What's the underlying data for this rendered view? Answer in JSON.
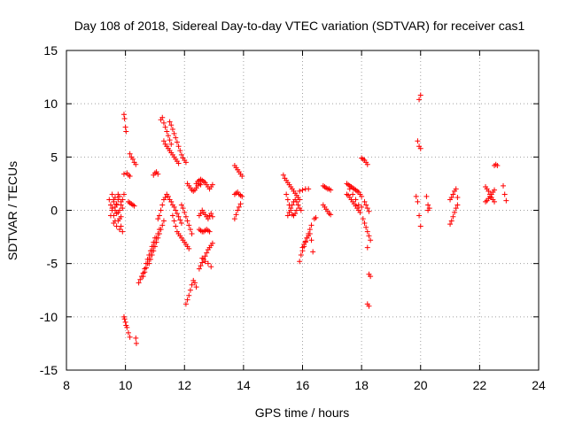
{
  "chart_data": {
    "type": "scatter",
    "title": "Day 108 of 2018, Sidereal Day-to-day VTEC variation (SDTVAR) for receiver cas1",
    "xlabel": "GPS time / hours",
    "ylabel": "SDTVAR / TECUs",
    "xlim": [
      8,
      24
    ],
    "ylim": [
      -15,
      15
    ],
    "xticks": [
      "8",
      "10",
      "12",
      "14",
      "16",
      "18",
      "20",
      "22",
      "24"
    ],
    "yticks": [
      "-15",
      "-10",
      "-5",
      "0",
      "5",
      "10",
      "15"
    ],
    "grid": true,
    "marker": "+",
    "marker_color": "#ff0000",
    "series": [
      {
        "name": "SDTVAR",
        "x": [
          9.45,
          9.5,
          9.55,
          9.6,
          9.65,
          9.7,
          9.75,
          9.8,
          9.85,
          9.9,
          9.95,
          9.5,
          9.55,
          9.6,
          9.65,
          9.7,
          9.75,
          9.8,
          9.85,
          9.9,
          9.55,
          9.6,
          9.65,
          9.7,
          9.75,
          9.8,
          9.85,
          9.6,
          9.7,
          9.8,
          9.9,
          9.65,
          9.75,
          9.85,
          9.95,
          9.95,
          9.97,
          10.0,
          10.02,
          10.05,
          10.1,
          10.15,
          9.95,
          9.97,
          10.0,
          10.02,
          10.05,
          10.1,
          10.15,
          10.15,
          10.2,
          10.25,
          10.3,
          10.35,
          10.1,
          10.15,
          10.2,
          10.25,
          10.3,
          10.35,
          10.37,
          10.45,
          10.5,
          10.55,
          10.6,
          10.65,
          10.7,
          10.75,
          10.8,
          10.85,
          10.9,
          10.95,
          11.0,
          10.6,
          10.65,
          10.7,
          10.75,
          10.8,
          10.85,
          10.9,
          10.95,
          11.0,
          11.05,
          11.1,
          11.15,
          10.8,
          10.85,
          10.9,
          10.95,
          11.0,
          11.05,
          11.1,
          11.15,
          11.2,
          11.25,
          11.3,
          10.95,
          11.0,
          11.05,
          11.1,
          11.1,
          11.15,
          11.2,
          11.25,
          11.3,
          11.35,
          11.4,
          11.45,
          11.5,
          11.55,
          11.6,
          11.65,
          11.7,
          11.75,
          11.8,
          11.85,
          11.9,
          11.2,
          11.25,
          11.3,
          11.35,
          11.4,
          11.45,
          11.5,
          11.55,
          11.5,
          11.55,
          11.6,
          11.65,
          11.7,
          11.75,
          11.8,
          11.85,
          11.9,
          11.95,
          12.0,
          12.05,
          11.3,
          11.35,
          11.4,
          11.45,
          11.5,
          11.55,
          11.6,
          11.65,
          11.7,
          11.75,
          11.8,
          11.6,
          11.65,
          11.7,
          11.75,
          11.8,
          11.85,
          11.9,
          11.95,
          12.0,
          12.05,
          12.1,
          12.15,
          11.9,
          11.95,
          12.0,
          12.05,
          12.1,
          12.15,
          12.2,
          12.25,
          12.05,
          12.1,
          12.15,
          12.2,
          12.25,
          12.3,
          12.35,
          12.4,
          12.1,
          12.15,
          12.2,
          12.25,
          12.3,
          12.35,
          12.4,
          12.45,
          12.5,
          12.55,
          12.4,
          12.45,
          12.5,
          12.55,
          12.6,
          12.65,
          12.7,
          12.75,
          12.8,
          12.85,
          12.9,
          12.95,
          12.5,
          12.55,
          12.6,
          12.65,
          12.7,
          12.75,
          12.8,
          12.85,
          12.9,
          12.95,
          12.5,
          12.55,
          12.6,
          12.65,
          12.7,
          12.75,
          12.8,
          12.85,
          12.9,
          12.95,
          12.5,
          12.55,
          12.6,
          12.65,
          12.7,
          12.75,
          12.8,
          12.85,
          12.6,
          12.7,
          12.8,
          12.9,
          13.7,
          13.75,
          13.8,
          13.85,
          13.9,
          13.95,
          13.7,
          13.75,
          13.8,
          13.85,
          13.9,
          13.95,
          13.7,
          13.75,
          13.8,
          13.85,
          13.9,
          15.35,
          15.4,
          15.45,
          15.5,
          15.55,
          15.6,
          15.65,
          15.7,
          15.75,
          15.8,
          15.85,
          15.9,
          15.45,
          15.5,
          15.55,
          15.6,
          15.65,
          15.7,
          15.75,
          15.8,
          15.5,
          15.55,
          15.6,
          15.65,
          15.7,
          15.75,
          15.8,
          15.85,
          15.9,
          15.95,
          15.9,
          15.95,
          16.0,
          16.05,
          16.1,
          16.15,
          16.2,
          16.25,
          16.3,
          16.0,
          16.05,
          16.1,
          16.15,
          16.2,
          16.25,
          16.3,
          16.35,
          15.9,
          16.0,
          16.1,
          16.2,
          16.4,
          16.45,
          16.7,
          16.75,
          16.8,
          16.85,
          16.9,
          16.95,
          16.7,
          16.75,
          16.8,
          16.85,
          16.9,
          16.95,
          17.5,
          17.55,
          17.6,
          17.65,
          17.7,
          17.75,
          17.8,
          17.85,
          17.9,
          17.95,
          18.0,
          17.5,
          17.55,
          17.6,
          17.65,
          17.7,
          17.75,
          17.8,
          17.85,
          17.9,
          17.95,
          17.6,
          17.7,
          17.8,
          17.9,
          18.0,
          18.0,
          18.05,
          18.1,
          18.15,
          18.2,
          18.05,
          18.1,
          18.15,
          18.2,
          18.25,
          18.3,
          18.1,
          18.15,
          18.2,
          18.25,
          18.2,
          18.25,
          18.3,
          18.2,
          18.25,
          19.85,
          19.9,
          19.95,
          20.0,
          20.0,
          19.95,
          19.9,
          19.95,
          20.0,
          20.2,
          20.25,
          20.3,
          20.25,
          21.0,
          21.05,
          21.1,
          21.15,
          21.2,
          21.25,
          21.0,
          21.05,
          21.1,
          21.15,
          21.2,
          21.25,
          22.2,
          22.25,
          22.3,
          22.35,
          22.4,
          22.45,
          22.5,
          22.2,
          22.25,
          22.3,
          22.35,
          22.4,
          22.45,
          22.5,
          22.5,
          22.55,
          22.6,
          22.8,
          22.85,
          22.9
        ],
        "y": [
          1.0,
          0.5,
          0.0,
          -0.5,
          -1.0,
          -1.5,
          -1.0,
          0.0,
          0.5,
          1.0,
          1.5,
          -0.5,
          0.2,
          0.8,
          1.2,
          0.5,
          -0.2,
          -0.8,
          -1.5,
          -2.0,
          1.5,
          1.0,
          0.3,
          -0.3,
          1.0,
          1.3,
          0.8,
          -1.2,
          0.6,
          -1.8,
          0.2,
          0.0,
          1.5,
          -0.6,
          3.4,
          9.0,
          8.6,
          7.8,
          7.4,
          3.5,
          3.3,
          3.2,
          -10.0,
          -10.2,
          -10.5,
          -10.8,
          -11.0,
          -11.5,
          -11.9,
          5.3,
          5.0,
          4.8,
          4.5,
          4.3,
          0.8,
          0.7,
          0.6,
          0.5,
          0.4,
          -12.0,
          -12.5,
          -6.8,
          -6.5,
          -6.2,
          -5.9,
          -5.5,
          -5.0,
          -4.6,
          -4.2,
          -3.8,
          -3.4,
          -3.0,
          -2.6,
          -6.2,
          -5.8,
          -5.4,
          -5.0,
          -4.6,
          -4.2,
          -3.8,
          -3.4,
          -3.0,
          -2.6,
          -2.2,
          -1.8,
          -5.0,
          -4.6,
          -4.2,
          -3.8,
          -3.4,
          -3.0,
          -2.6,
          -2.2,
          -1.8,
          -1.4,
          -1.0,
          3.3,
          3.5,
          3.6,
          3.4,
          -0.8,
          -0.5,
          0.0,
          0.5,
          1.0,
          1.2,
          1.5,
          1.3,
          1.0,
          0.8,
          0.5,
          0.3,
          0.0,
          -0.3,
          -0.6,
          -0.9,
          -1.2,
          8.5,
          8.7,
          8.2,
          7.8,
          7.4,
          7.0,
          6.6,
          6.2,
          8.3,
          8.0,
          7.6,
          7.2,
          6.8,
          6.4,
          6.0,
          5.6,
          5.2,
          4.9,
          4.7,
          4.5,
          6.5,
          6.2,
          6.0,
          5.8,
          5.6,
          5.4,
          5.2,
          5.0,
          4.8,
          4.6,
          4.4,
          -0.5,
          -1.0,
          -1.5,
          -2.0,
          -2.2,
          -2.4,
          -2.6,
          -2.8,
          -3.0,
          -3.2,
          -3.4,
          -3.6,
          0.5,
          0.2,
          -0.2,
          -0.6,
          -1.0,
          -1.4,
          -1.8,
          -2.2,
          -8.8,
          -8.4,
          -8.0,
          -7.5,
          -7.0,
          -6.6,
          -6.8,
          -7.2,
          2.5,
          2.3,
          2.1,
          1.9,
          1.8,
          1.9,
          2.1,
          2.3,
          2.5,
          2.4,
          2.5,
          2.7,
          2.8,
          2.9,
          2.8,
          2.7,
          2.6,
          2.4,
          2.2,
          2.0,
          2.2,
          2.4,
          -5.5,
          -5.2,
          -4.9,
          -4.6,
          -4.3,
          -4.0,
          -3.7,
          -3.5,
          -3.3,
          -3.1,
          -0.5,
          -0.3,
          0.0,
          -0.2,
          -0.4,
          -0.6,
          -0.8,
          -0.5,
          -0.3,
          -0.6,
          -1.8,
          -1.9,
          -2.0,
          -2.0,
          -1.9,
          -1.8,
          -1.9,
          -2.0,
          -4.5,
          -4.8,
          -5.0,
          -5.3,
          4.2,
          4.0,
          3.8,
          3.6,
          3.4,
          3.2,
          1.5,
          1.6,
          1.7,
          1.5,
          1.4,
          1.3,
          -0.8,
          -0.4,
          0.0,
          0.3,
          0.6,
          3.3,
          3.0,
          2.8,
          2.6,
          2.4,
          2.2,
          2.0,
          1.8,
          1.6,
          1.4,
          1.2,
          1.0,
          1.5,
          1.0,
          0.5,
          0.0,
          -0.4,
          -0.5,
          -0.3,
          0.0,
          -0.5,
          -0.2,
          0.2,
          0.5,
          0.8,
          1.0,
          0.8,
          0.5,
          0.2,
          0.0,
          -4.8,
          -4.2,
          -3.8,
          -3.4,
          -3.0,
          -2.6,
          -2.2,
          -1.8,
          -1.4,
          -3.5,
          -3.2,
          -2.9,
          -2.6,
          -2.4,
          -2.2,
          -2.8,
          -3.9,
          1.8,
          1.9,
          2.0,
          2.0,
          -0.8,
          -0.7,
          2.3,
          2.2,
          2.1,
          2.0,
          2.0,
          1.9,
          0.5,
          0.3,
          0.1,
          -0.1,
          -0.3,
          -0.4,
          2.5,
          2.4,
          2.3,
          2.2,
          2.1,
          2.0,
          1.9,
          1.8,
          1.7,
          1.5,
          1.3,
          1.5,
          1.4,
          1.2,
          1.0,
          0.8,
          0.6,
          0.4,
          0.2,
          0.0,
          -0.2,
          2.0,
          1.5,
          1.0,
          0.5,
          0.3,
          4.9,
          4.8,
          4.7,
          4.5,
          4.3,
          -0.8,
          -1.2,
          -1.6,
          -2.0,
          -2.4,
          -2.8,
          0.8,
          0.5,
          0.2,
          -0.1,
          -3.5,
          -6.0,
          -6.2,
          -8.8,
          -9.0,
          1.3,
          0.8,
          -0.5,
          -1.5,
          10.8,
          10.4,
          6.5,
          6.0,
          5.8,
          1.3,
          0.5,
          0.2,
          0.0,
          -1.3,
          -1.0,
          -0.6,
          -0.2,
          0.2,
          0.5,
          1.0,
          1.2,
          1.5,
          1.8,
          2.0,
          1.2,
          2.2,
          2.0,
          1.8,
          1.5,
          1.2,
          1.0,
          0.8,
          0.8,
          0.9,
          1.1,
          1.3,
          1.5,
          1.7,
          1.9,
          4.2,
          4.3,
          4.2,
          2.3,
          1.5,
          0.9
        ]
      }
    ]
  }
}
